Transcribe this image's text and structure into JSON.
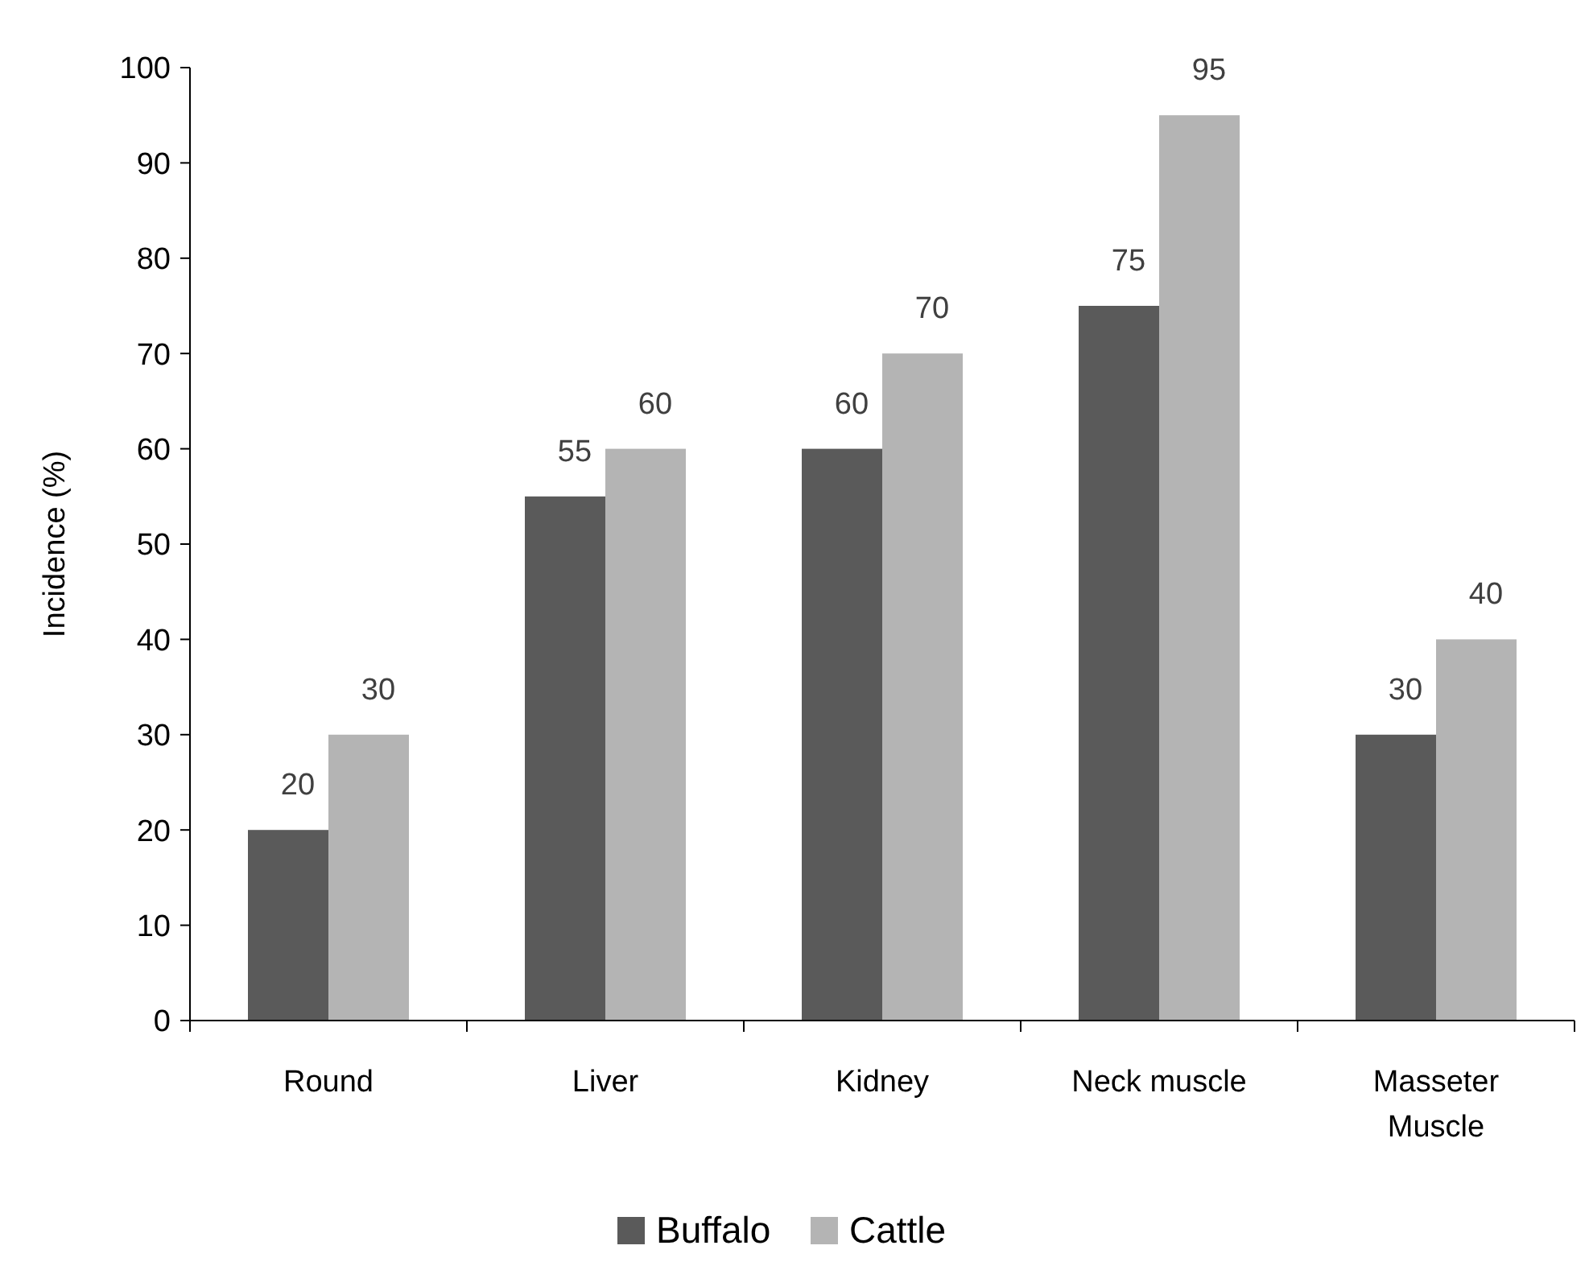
{
  "chart_data": {
    "type": "bar",
    "ylabel": "Incidence (%)",
    "categories": [
      "Round",
      "Liver",
      "Kidney",
      "Neck muscle",
      "Masseter Muscle"
    ],
    "series": [
      {
        "name": "Buffalo",
        "color": "#5a5a5a",
        "values": [
          20,
          55,
          60,
          75,
          30
        ]
      },
      {
        "name": "Cattle",
        "color": "#b4b4b4",
        "values": [
          30,
          60,
          70,
          95,
          40
        ]
      }
    ],
    "ylim": [
      0,
      100
    ],
    "yticks": [
      0,
      10,
      20,
      30,
      40,
      50,
      60,
      70,
      80,
      90,
      100
    ],
    "grid": false,
    "legend": "bottom",
    "data_labels": true
  }
}
